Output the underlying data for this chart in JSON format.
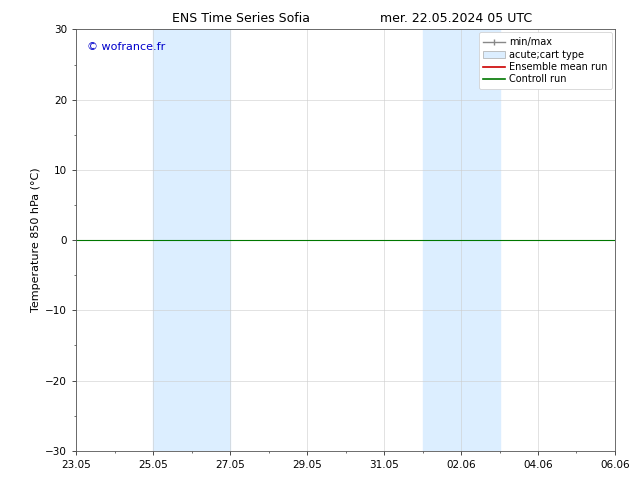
{
  "title_left": "ENS Time Series Sofia",
  "title_right": "mer. 22.05.2024 05 UTC",
  "ylabel": "Temperature 850 hPa (°C)",
  "ylim": [
    -30,
    30
  ],
  "yticks": [
    -30,
    -20,
    -10,
    0,
    10,
    20,
    30
  ],
  "xtick_labels": [
    "23.05",
    "25.05",
    "27.05",
    "29.05",
    "31.05",
    "02.06",
    "04.06",
    "06.06"
  ],
  "xtick_positions_days": [
    0,
    2,
    4,
    6,
    8,
    10,
    12,
    14
  ],
  "shaded_bands": [
    {
      "x_start_day": 2,
      "x_end_day": 4
    },
    {
      "x_start_day": 9,
      "x_end_day": 11
    }
  ],
  "zero_line_color": "#007700",
  "zero_line_y": 0,
  "ensemble_mean_color": "#cc0000",
  "control_run_color": "#007700",
  "shading_color": "#dceeff",
  "shading_alpha": 1.0,
  "watermark_text": "© wofrance.fr",
  "watermark_color": "#0000cc",
  "watermark_fontsize": 8,
  "legend_labels": [
    "min/max",
    "acute;cart type",
    "Ensemble mean run",
    "Controll run"
  ],
  "bg_color": "#ffffff",
  "title_fontsize": 9,
  "axis_label_fontsize": 8,
  "tick_fontsize": 7.5,
  "legend_fontsize": 7,
  "xlim": [
    0,
    14
  ],
  "n_days": 14
}
